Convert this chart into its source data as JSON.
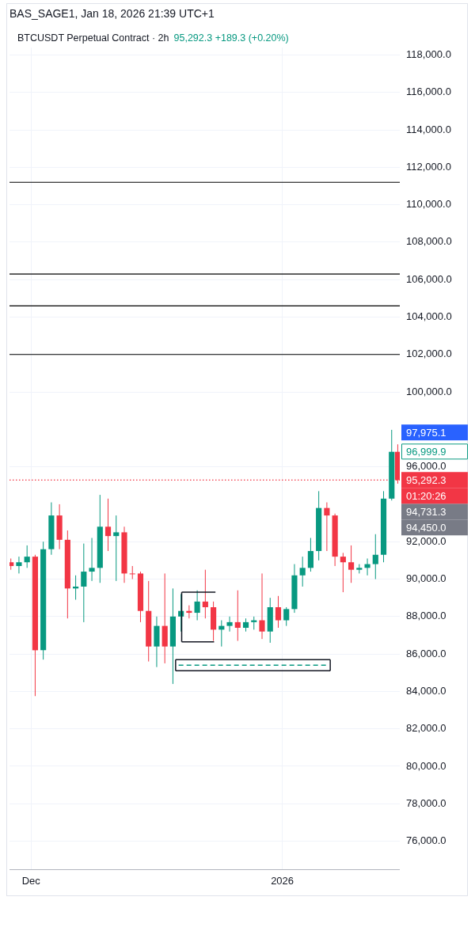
{
  "chart_data": {
    "type": "candlestick",
    "title": "BAS_SAGE1, Jan 18, 2026 21:39 UTC+1",
    "subtitle": "BTCUSDT Perpetual Contract · 2h",
    "x": [
      "2025-11-28T12:00",
      "2025-11-29T12:00",
      "2025-11-30T12:00",
      "2025-12-01T12:00",
      "2025-12-02T12:00",
      "2025-12-03T12:00",
      "2025-12-04T12:00",
      "2025-12-05T12:00",
      "2025-12-06T12:00",
      "2025-12-07T12:00",
      "2025-12-08T12:00",
      "2025-12-09T12:00",
      "2025-12-10T12:00",
      "2025-12-11T12:00",
      "2025-12-12T12:00",
      "2025-12-13T12:00",
      "2025-12-14T12:00",
      "2025-12-15T12:00",
      "2025-12-16T12:00",
      "2025-12-17T12:00",
      "2025-12-18T12:00",
      "2025-12-19T12:00",
      "2025-12-20T12:00",
      "2025-12-21T12:00",
      "2025-12-22T12:00",
      "2025-12-23T12:00",
      "2025-12-24T12:00",
      "2025-12-25T12:00",
      "2025-12-26T12:00",
      "2025-12-27T12:00",
      "2025-12-28T12:00",
      "2025-12-29T12:00",
      "2025-12-30T12:00",
      "2025-12-31T12:00",
      "2026-01-01T12:00",
      "2026-01-02T12:00",
      "2026-01-03T12:00",
      "2026-01-04T12:00",
      "2026-01-05T12:00",
      "2026-01-06T12:00",
      "2026-01-07T12:00",
      "2026-01-08T12:00",
      "2026-01-09T12:00",
      "2026-01-10T12:00",
      "2026-01-11T12:00",
      "2026-01-12T12:00",
      "2026-01-13T12:00",
      "2026-01-14T12:00",
      "2026-01-15T06:00"
    ],
    "ohlc": [
      [
        90900,
        91100,
        90500,
        90700
      ],
      [
        90700,
        91200,
        90300,
        90900
      ],
      [
        90900,
        91800,
        90600,
        91200
      ],
      [
        91200,
        91300,
        83750,
        86200
      ],
      [
        86200,
        92000,
        85700,
        91600
      ],
      [
        91600,
        94100,
        91300,
        93400
      ],
      [
        93400,
        94000,
        91600,
        92100
      ],
      [
        92100,
        92600,
        87900,
        89500
      ],
      [
        89500,
        90200,
        88900,
        89600
      ],
      [
        89600,
        91900,
        87700,
        90400
      ],
      [
        90400,
        92200,
        89900,
        90600
      ],
      [
        90600,
        94500,
        89800,
        92800
      ],
      [
        92800,
        94300,
        91500,
        92300
      ],
      [
        92300,
        93400,
        89900,
        92500
      ],
      [
        92500,
        92800,
        89800,
        90300
      ],
      [
        90300,
        90700,
        90000,
        90300
      ],
      [
        90300,
        90400,
        87700,
        88300
      ],
      [
        88300,
        89900,
        85600,
        86400
      ],
      [
        86400,
        88000,
        85300,
        87500
      ],
      [
        87500,
        90300,
        85500,
        86400
      ],
      [
        86400,
        89500,
        84400,
        88000
      ],
      [
        88000,
        89200,
        87200,
        88300
      ],
      [
        88300,
        88600,
        87900,
        88200
      ],
      [
        88200,
        89400,
        87800,
        88800
      ],
      [
        88800,
        90500,
        87900,
        88500
      ],
      [
        88500,
        88800,
        86700,
        87300
      ],
      [
        87300,
        87800,
        86400,
        87500
      ],
      [
        87500,
        88000,
        87200,
        87700
      ],
      [
        87700,
        89400,
        86700,
        87400
      ],
      [
        87400,
        87900,
        87200,
        87700
      ],
      [
        87700,
        88000,
        87300,
        87800
      ],
      [
        87800,
        90300,
        86800,
        87200
      ],
      [
        87200,
        89000,
        86600,
        88500
      ],
      [
        88500,
        89100,
        87400,
        87800
      ],
      [
        87800,
        88500,
        87500,
        88400
      ],
      [
        88400,
        90800,
        88200,
        90200
      ],
      [
        90200,
        91200,
        89600,
        90600
      ],
      [
        90600,
        92200,
        90400,
        91500
      ],
      [
        91500,
        94700,
        91000,
        93800
      ],
      [
        93800,
        94100,
        91500,
        93400
      ],
      [
        93400,
        93500,
        90700,
        91200
      ],
      [
        91200,
        91400,
        89300,
        90900
      ],
      [
        90900,
        91800,
        89800,
        90500
      ],
      [
        90500,
        90800,
        90300,
        90600
      ],
      [
        90600,
        91100,
        90200,
        90800
      ],
      [
        90800,
        92400,
        90000,
        91300
      ],
      [
        91300,
        94700,
        90900,
        94300
      ],
      [
        94300,
        97975.1,
        94200,
        96800
      ],
      [
        96800,
        97200,
        95100,
        95292.3
      ]
    ],
    "colors": [
      "#f23645",
      "#089981",
      "#089981",
      "#f23645",
      "#089981",
      "#089981",
      "#f23645",
      "#f23645",
      "#089981",
      "#089981",
      "#089981",
      "#089981",
      "#f23645",
      "#089981",
      "#f23645",
      "#f23645",
      "#f23645",
      "#f23645",
      "#089981",
      "#f23645",
      "#089981",
      "#089981",
      "#f23645",
      "#089981",
      "#f23645",
      "#f23645",
      "#089981",
      "#089981",
      "#f23645",
      "#089981",
      "#089981",
      "#f23645",
      "#089981",
      "#f23645",
      "#089981",
      "#089981",
      "#089981",
      "#089981",
      "#089981",
      "#f23645",
      "#f23645",
      "#f23645",
      "#f23645",
      "#089981",
      "#089981",
      "#089981",
      "#089981",
      "#089981",
      "#f23645"
    ],
    "xlim": [
      "2025-11-28T08:00",
      "2026-01-15T12:00"
    ],
    "xticks": [
      {
        "value": "2025-12-01",
        "label": "Dec"
      },
      {
        "value": "2026-01-01",
        "label": "2026"
      }
    ],
    "ylim": [
      74500,
      118400
    ],
    "yticks": [
      {
        "value": 76000,
        "label": "76,000.0"
      },
      {
        "value": 78000,
        "label": "78,000.0"
      },
      {
        "value": 80000,
        "label": "80,000.0"
      },
      {
        "value": 82000,
        "label": "82,000.0"
      },
      {
        "value": 84000,
        "label": "84,000.0"
      },
      {
        "value": 86000,
        "label": "86,000.0"
      },
      {
        "value": 88000,
        "label": "88,000.0"
      },
      {
        "value": 90000,
        "label": "90,000.0"
      },
      {
        "value": 92000,
        "label": "92,000.0"
      },
      {
        "value": 96000,
        "label": "96,000.0"
      },
      {
        "value": 100000,
        "label": "100,000.0"
      },
      {
        "value": 102000,
        "label": "102,000.0"
      },
      {
        "value": 104000,
        "label": "104,000.0"
      },
      {
        "value": 106000,
        "label": "106,000.0"
      },
      {
        "value": 108000,
        "label": "108,000.0"
      },
      {
        "value": 110000,
        "label": "110,000.0"
      },
      {
        "value": 112000,
        "label": "112,000.0"
      },
      {
        "value": 114000,
        "label": "114,000.0"
      },
      {
        "value": 116000,
        "label": "116,000.0"
      },
      {
        "value": 118000,
        "label": "118,000.0"
      }
    ],
    "grid": true,
    "series": [
      {
        "type": "line",
        "color": "#131722",
        "line_style": "solid",
        "x": [
          "2025-12-18T20:00",
          "2026-01-06T22:00"
        ],
        "values": [
          85700,
          85700
        ]
      },
      {
        "type": "line",
        "color": "#131722",
        "line_style": "solid",
        "x": [
          "2025-12-18T20:00",
          "2026-01-06T22:00"
        ],
        "values": [
          85100,
          85100
        ]
      },
      {
        "type": "line",
        "color": "#131722",
        "line_style": "solid",
        "x": [
          "2025-12-18T20:00",
          "2025-12-18T20:00"
        ],
        "values": [
          85100,
          85700
        ]
      },
      {
        "type": "line",
        "color": "#131722",
        "line_style": "solid",
        "x": [
          "2026-01-06T22:00",
          "2026-01-06T22:00"
        ],
        "values": [
          85100,
          85700
        ]
      },
      {
        "type": "line",
        "color": "#131722",
        "line_style": "solid",
        "x": [
          "2025-12-19T14:00",
          "2025-12-19T14:00"
        ],
        "values": [
          86650,
          89300
        ]
      },
      {
        "type": "line",
        "color": "#089981",
        "line_style": "dashed",
        "x": [
          "2025-12-19T05:00",
          "2026-01-06T15:00"
        ],
        "values": [
          85400,
          85400
        ]
      },
      {
        "type": "line",
        "color": "#131722",
        "line_style": "solid",
        "x": [
          "2025-12-19T14:00",
          "2025-12-23T18:00"
        ],
        "values": [
          89300,
          89300
        ]
      },
      {
        "type": "line",
        "color": "#131722",
        "line_style": "solid",
        "x": [
          "2025-12-19T14:00",
          "2025-12-23T14:00"
        ],
        "values": [
          86650,
          86650
        ]
      }
    ],
    "ref_lines": [
      {
        "axis": "y",
        "value": 111200,
        "color": "#000000"
      },
      {
        "axis": "y",
        "value": 106300,
        "color": "#000000"
      },
      {
        "axis": "y",
        "value": 104600,
        "color": "#000000"
      },
      {
        "axis": "y",
        "value": 102000,
        "color": "#000000"
      },
      {
        "axis": "y",
        "value": 95292.3,
        "label": "95,292.3",
        "color": "#f23645",
        "line_style": "dotted"
      }
    ],
    "annotations": [
      "95,292.3 +189.3 (+0.20%)",
      "01:20:26",
      "97,975.1",
      "96,999.9",
      "94,731.3",
      "94,450.0"
    ]
  }
}
